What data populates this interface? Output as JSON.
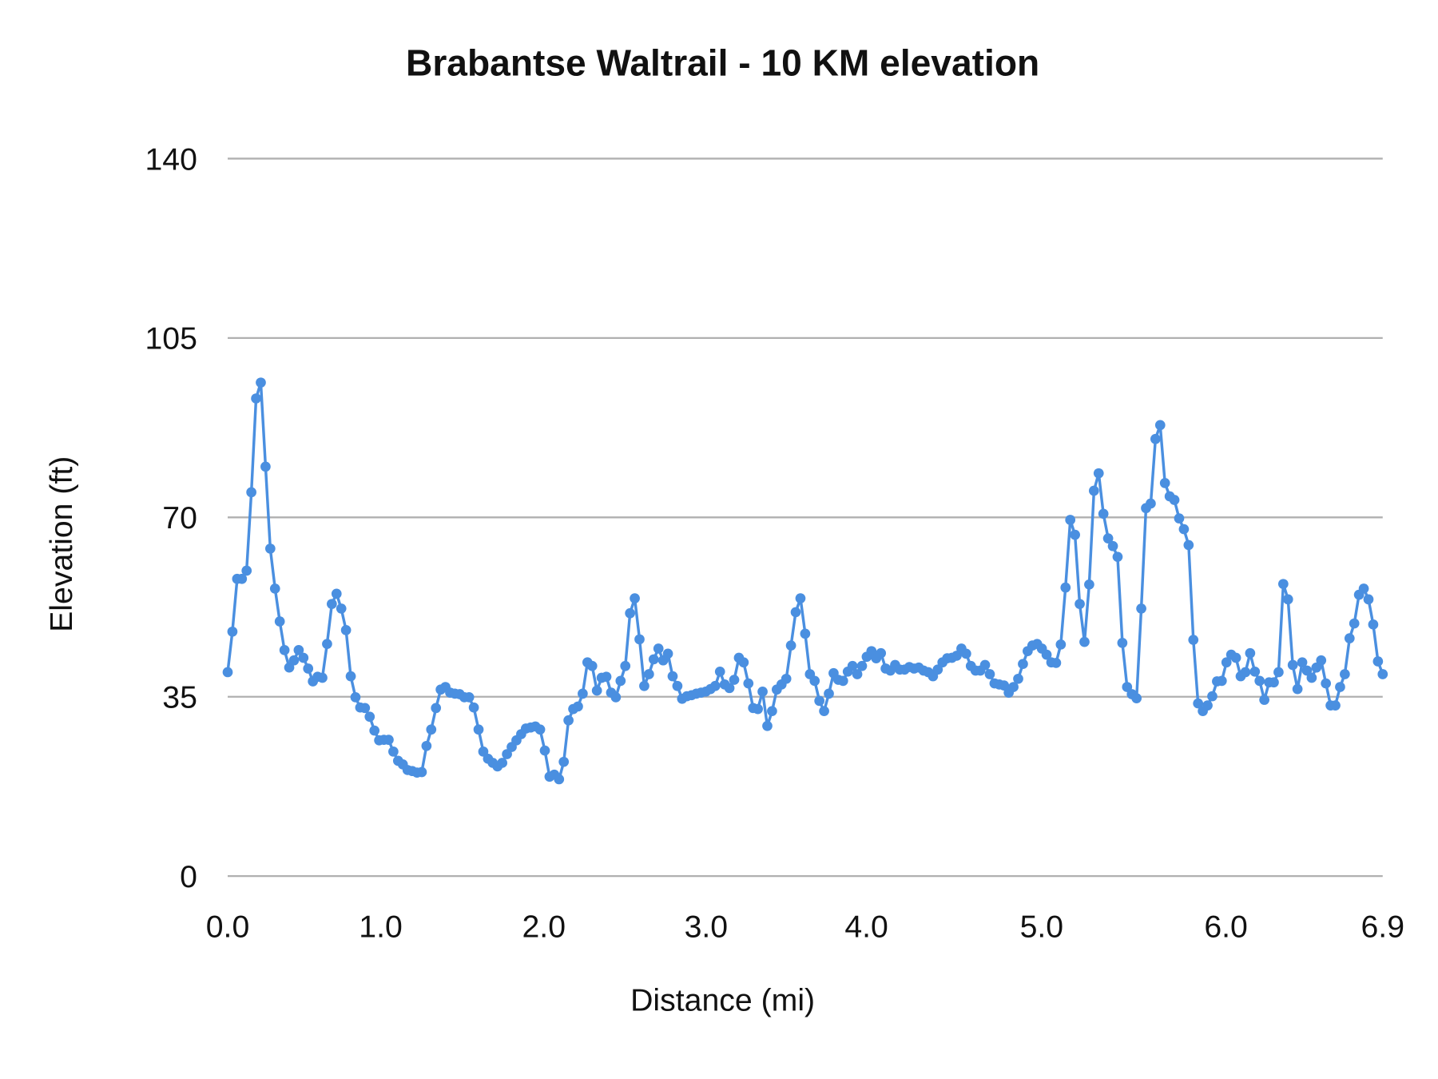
{
  "chart_data": {
    "type": "line",
    "title": "Brabantse Waltrail - 10 KM elevation",
    "xlabel": "Distance (mi)",
    "ylabel": "Elevation (ft)",
    "ylim": [
      0,
      140
    ],
    "y_ticks": [
      "0",
      "35",
      "70",
      "105",
      "140"
    ],
    "x_tick_labels": [
      "0.0",
      "1.0",
      "2.0",
      "3.0",
      "4.0",
      "5.0",
      "6.0",
      "6.9"
    ],
    "grid": true,
    "legend": "none",
    "markers": true,
    "series_color": "#4a8fe0",
    "series": [
      {
        "values": [
          39.8,
          47.7,
          58,
          58,
          59.6,
          74.9,
          93.2,
          96.3,
          79.9,
          63.9,
          56.1,
          49.7,
          44.1,
          40.7,
          42.1,
          44.1,
          42.6,
          40.5,
          38,
          38.9,
          38.7,
          45.3,
          53.1,
          55.1,
          52.2,
          48,
          39,
          34.9,
          32.9,
          32.8,
          31.1,
          28.4,
          26.5,
          26.6,
          26.6,
          24.3,
          22.5,
          21.8,
          20.7,
          20.5,
          20.2,
          20.3,
          25.4,
          28.6,
          32.8,
          36.4,
          36.9,
          35.8,
          35.6,
          35.5,
          34.9,
          34.9,
          32.9,
          28.6,
          24.3,
          22.9,
          22.1,
          21.4,
          22.1,
          23.8,
          25.2,
          26.5,
          27.7,
          28.8,
          29,
          29.2,
          28.6,
          24.5,
          19.4,
          19.8,
          18.9,
          22.3,
          30.4,
          32.6,
          33.1,
          35.6,
          41.7,
          41,
          36.2,
          38.7,
          38.9,
          35.8,
          34.9,
          38.1,
          41,
          51.3,
          54.2,
          46.2,
          37.1,
          39.4,
          42.3,
          44.4,
          42.1,
          43.4,
          39,
          37.1,
          34.6,
          35.1,
          35.3,
          35.6,
          35.8,
          36,
          36.5,
          37.1,
          39.9,
          37.4,
          36.7,
          38.3,
          42.6,
          41.7,
          37.6,
          32.8,
          32.6,
          36,
          29.3,
          32.2,
          36.4,
          37.4,
          38.5,
          45,
          51.5,
          54.2,
          47.3,
          39.4,
          38.1,
          34.2,
          32.2,
          35.6,
          39.6,
          38.3,
          38.1,
          39.9,
          41,
          39.4,
          41,
          42.8,
          43.9,
          42.5,
          43.5,
          40.5,
          40.1,
          41.2,
          40.3,
          40.3,
          40.8,
          40.5,
          40.7,
          40.1,
          39.8,
          39,
          40.3,
          41.7,
          42.5,
          42.6,
          43,
          44.4,
          43.4,
          41,
          40.1,
          40.1,
          41.2,
          39.4,
          37.6,
          37.4,
          37.2,
          35.8,
          36.9,
          38.5,
          41.4,
          43.9,
          45,
          45.3,
          44.4,
          43.2,
          41.7,
          41.6,
          45.2,
          56.3,
          69.5,
          66.6,
          53.1,
          45.7,
          56.9,
          75.2,
          78.6,
          70.7,
          65.9,
          64.4,
          62.3,
          45.5,
          36.9,
          35.5,
          34.7,
          52.2,
          71.8,
          72.7,
          85.3,
          88,
          76.7,
          74.1,
          73.4,
          69.8,
          67.7,
          64.6,
          46.1,
          33.7,
          32.2,
          33.3,
          35.1,
          38,
          38.1,
          41.7,
          43.2,
          42.6,
          39,
          39.8,
          43.5,
          39.9,
          38.1,
          34.4,
          37.8,
          37.8,
          39.8,
          57,
          54,
          41.2,
          36.5,
          41.7,
          40.1,
          38.7,
          40.7,
          42.1,
          37.6,
          33.3,
          33.3,
          36.9,
          39.4,
          46.4,
          49.3,
          54.9,
          56.1,
          54,
          49.1,
          41.9,
          39.4
        ]
      }
    ]
  }
}
